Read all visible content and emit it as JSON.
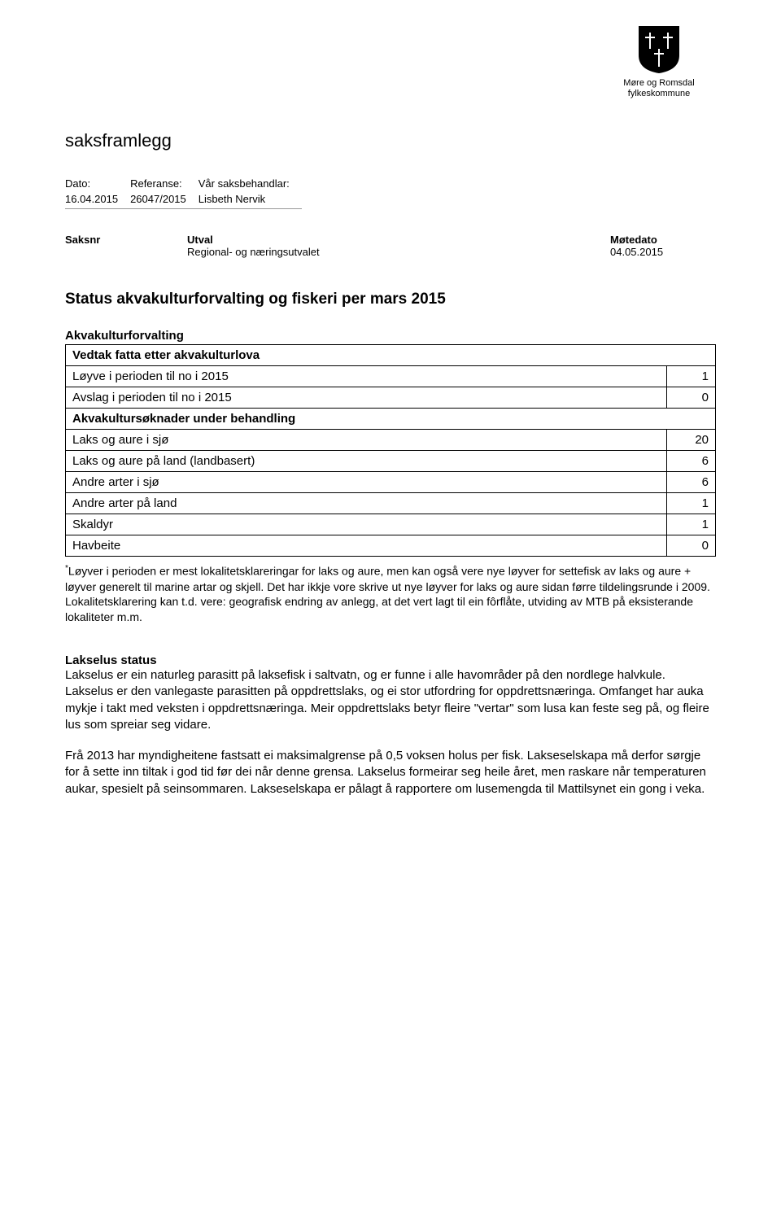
{
  "logo": {
    "line1": "Møre og Romsdal",
    "line2": "fylkeskommune",
    "fill": "#000000"
  },
  "doc_title": "saksframlegg",
  "meta": {
    "labels": {
      "date": "Dato:",
      "ref": "Referanse:",
      "handler": "Vår saksbehandlar:"
    },
    "date": "16.04.2015",
    "ref": "26047/2015",
    "handler": "Lisbeth Nervik"
  },
  "case": {
    "headers": {
      "nr": "Saksnr",
      "utval": "Utval",
      "date": "Møtedato"
    },
    "utval": "Regional- og næringsutvalet",
    "date": "04.05.2015"
  },
  "status_title": "Status akvakulturforvalting og fiskeri per mars 2015",
  "section1_title": "Akvakulturforvalting",
  "table": {
    "rows": [
      {
        "label": "Vedtak fatta etter akvakulturlova",
        "value": "",
        "bold": true,
        "noRightCell": true
      },
      {
        "label": "Løyve i perioden til no i 2015",
        "value": "1"
      },
      {
        "label": "Avslag i perioden til no i 2015",
        "value": "0"
      },
      {
        "label": "Akvakultursøknader under behandling",
        "value": "",
        "bold": true,
        "noRightCell": true
      },
      {
        "label": "Laks og aure i sjø",
        "value": "20"
      },
      {
        "label": "Laks og aure på land (landbasert)",
        "value": "6"
      },
      {
        "label": "Andre arter i sjø",
        "value": "6"
      },
      {
        "label": "Andre arter på land",
        "value": "1"
      },
      {
        "label": "Skaldyr",
        "value": "1"
      },
      {
        "label": "Havbeite",
        "value": "0"
      }
    ]
  },
  "footnote": "*Løyver i perioden er mest lokalitetsklareringar for laks og aure, men kan også vere nye løyver for settefisk av laks og aure + løyver generelt til marine artar og skjell. Det har ikkje vore skrive ut nye løyver for laks og aure sidan førre tildelingsrunde i 2009. Lokalitetsklarering kan t.d. vere: geografisk endring av anlegg, at det vert lagt til ein fôrflåte, utviding av MTB på eksisterande lokaliteter m.m.",
  "para_title": "Lakselus status",
  "para1": "Lakselus er ein naturleg parasitt på laksefisk i saltvatn, og er funne i alle havområder på den nordlege halvkule. Lakselus er den vanlegaste parasitten på oppdrettslaks, og ei stor utfordring for oppdrettsnæringa. Omfanget har auka mykje i takt med veksten i oppdrettsnæringa. Meir oppdrettslaks betyr fleire \"vertar\" som lusa kan feste seg på, og fleire lus som spreiar seg vidare.",
  "para2": "Frå 2013 har myndigheitene fastsatt ei maksimalgrense på 0,5 voksen holus per fisk. Lakseselskapa må derfor sørgje for å sette inn tiltak i god tid før dei når denne grensa. Lakselus formeirar seg heile året, men raskare når temperaturen aukar, spesielt på seinsommaren. Lakseselskapa er pålagt å rapportere om lusemengda til Mattilsynet ein gong i veka."
}
